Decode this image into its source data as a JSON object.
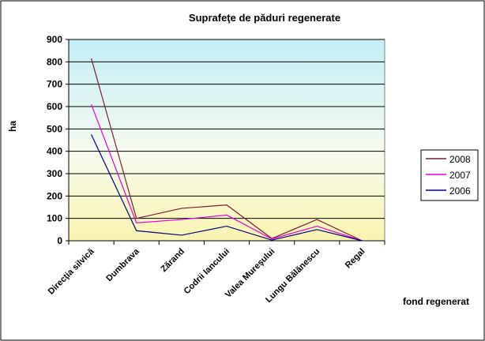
{
  "chart_data": {
    "type": "line",
    "title": "Suprafeţe de păduri regenerate",
    "ylabel": "ha",
    "xlabel": "fond regenerat",
    "categories": [
      "Direcţia silvică",
      "Dumbrava",
      "Zărand",
      "Codrii Iancului",
      "Valea Mureşului",
      "Lungu Bălănescu",
      "Regal"
    ],
    "ylim": [
      0,
      900
    ],
    "yticks": [
      "0",
      "100",
      "200",
      "300",
      "400",
      "500",
      "600",
      "700",
      "800",
      "900"
    ],
    "grid": true,
    "legend_position": "right",
    "series": [
      {
        "name": "2008",
        "values": [
          815,
          100,
          145,
          160,
          10,
          95,
          0
        ],
        "color": "#7a1f3a"
      },
      {
        "name": "2007",
        "values": [
          610,
          80,
          95,
          115,
          8,
          65,
          0
        ],
        "color": "#e000e0"
      },
      {
        "name": "2006",
        "values": [
          475,
          45,
          25,
          65,
          3,
          50,
          0
        ],
        "color": "#000080"
      }
    ]
  }
}
